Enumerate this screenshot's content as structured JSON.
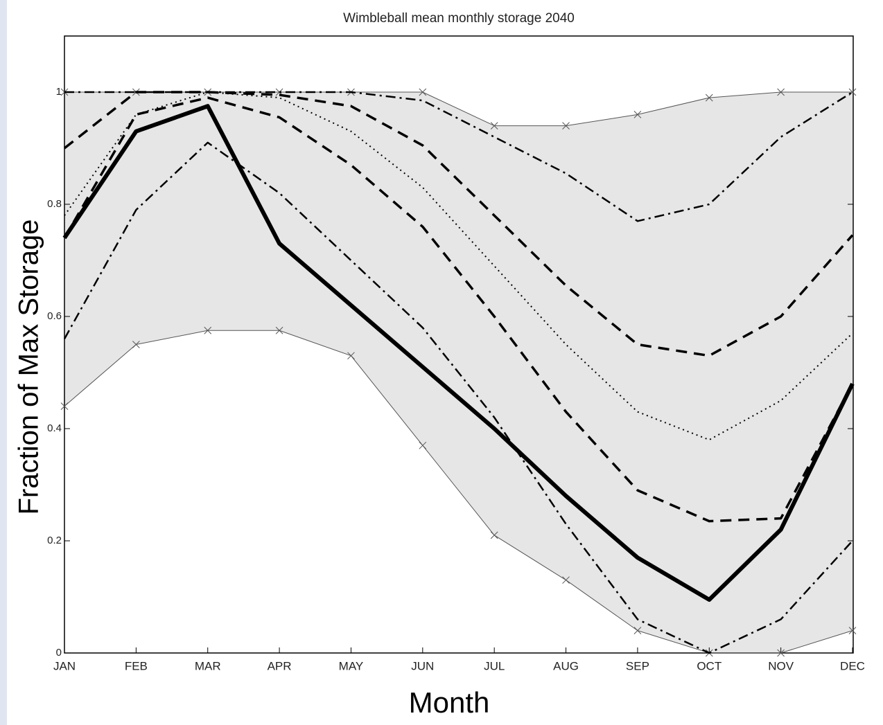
{
  "chart_data": {
    "type": "line",
    "title": "Wimbleball mean monthly storage 2040",
    "x_label": "Month",
    "y_label": "Fraction of Max Storage",
    "categories": [
      "JAN",
      "FEB",
      "MAR",
      "APR",
      "MAY",
      "JUN",
      "JUL",
      "AUG",
      "SEP",
      "OCT",
      "NOV",
      "DEC"
    ],
    "ylim": [
      0,
      1.1
    ],
    "yticks": [
      0,
      0.2,
      0.4,
      0.6,
      0.8,
      1
    ],
    "fill_between": [
      0,
      1
    ],
    "fill_color": "#e6e6e6",
    "series": [
      {
        "color": "#555555",
        "style": "thin",
        "values": [
          1,
          1,
          1,
          1,
          1,
          1,
          0.94,
          0.94,
          0.96,
          0.99,
          1,
          1
        ]
      },
      {
        "color": "#555555",
        "style": "thin",
        "values": [
          0.44,
          0.55,
          0.575,
          0.575,
          0.53,
          0.37,
          0.21,
          0.13,
          0.04,
          0,
          0,
          0.04
        ]
      },
      {
        "color": "#000000",
        "style": "dash-dot",
        "values": [
          1,
          1,
          1,
          1,
          1,
          0.985,
          0.92,
          0.855,
          0.77,
          0.8,
          0.92,
          1
        ]
      },
      {
        "color": "#000000",
        "style": "dash",
        "values": [
          0.9,
          1,
          1,
          0.995,
          0.975,
          0.905,
          0.78,
          0.655,
          0.55,
          0.53,
          0.6,
          0.745
        ]
      },
      {
        "color": "#000000",
        "style": "dot",
        "values": [
          0.78,
          0.96,
          1,
          0.99,
          0.93,
          0.83,
          0.69,
          0.55,
          0.43,
          0.38,
          0.45,
          0.57
        ]
      },
      {
        "color": "#000000",
        "style": "dash",
        "values": [
          0.74,
          0.96,
          0.99,
          0.955,
          0.87,
          0.76,
          0.6,
          0.43,
          0.29,
          0.235,
          0.24,
          0.48
        ]
      },
      {
        "color": "#000000",
        "style": "dash-dot",
        "values": [
          0.56,
          0.79,
          0.91,
          0.82,
          0.7,
          0.58,
          0.42,
          0.23,
          0.06,
          0,
          0.06,
          0.2
        ]
      },
      {
        "color": "#000000",
        "style": "thick",
        "values": [
          0.74,
          0.93,
          0.975,
          0.73,
          0.62,
          0.51,
          0.4,
          0.28,
          0.17,
          0.095,
          0.22,
          0.48
        ]
      }
    ]
  }
}
